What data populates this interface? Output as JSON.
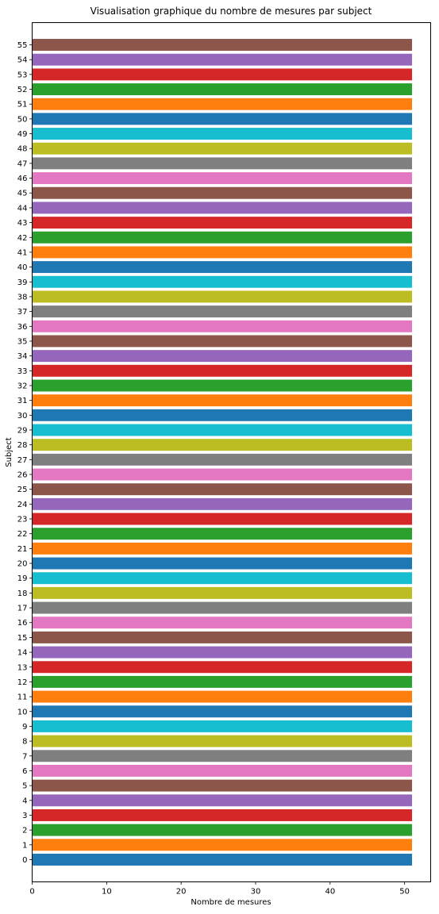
{
  "chart_data": {
    "type": "bar",
    "orientation": "horizontal",
    "title": "Visualisation graphique du nombre de mesures par subject",
    "xlabel": "Nombre de mesures",
    "ylabel": "Subject",
    "xlim": [
      0,
      53.5
    ],
    "ylim": [
      -1.5,
      56.5
    ],
    "x_ticks": [
      0,
      10,
      20,
      30,
      40,
      50
    ],
    "grid": false,
    "legend": "none",
    "categories": [
      "0",
      "1",
      "2",
      "3",
      "4",
      "5",
      "6",
      "7",
      "8",
      "9",
      "10",
      "11",
      "12",
      "13",
      "14",
      "15",
      "16",
      "17",
      "18",
      "19",
      "20",
      "21",
      "22",
      "23",
      "24",
      "25",
      "26",
      "27",
      "28",
      "29",
      "30",
      "31",
      "32",
      "33",
      "34",
      "35",
      "36",
      "37",
      "38",
      "39",
      "40",
      "41",
      "42",
      "43",
      "44",
      "45",
      "46",
      "47",
      "48",
      "49",
      "50",
      "51",
      "52",
      "53",
      "54",
      "55"
    ],
    "values": [
      51,
      51,
      51,
      51,
      51,
      51,
      51,
      51,
      51,
      51,
      51,
      51,
      51,
      51,
      51,
      51,
      51,
      51,
      51,
      51,
      51,
      51,
      51,
      51,
      51,
      51,
      51,
      51,
      51,
      51,
      51,
      51,
      51,
      51,
      51,
      51,
      51,
      51,
      51,
      51,
      51,
      51,
      51,
      51,
      51,
      51,
      51,
      51,
      51,
      51,
      51,
      51,
      51,
      51,
      51,
      51
    ],
    "colors": [
      "#1f77b4",
      "#ff7f0e",
      "#2ca02c",
      "#d62728",
      "#9467bd",
      "#8c564b",
      "#e377c2",
      "#7f7f7f",
      "#bcbd22",
      "#17becf"
    ]
  }
}
